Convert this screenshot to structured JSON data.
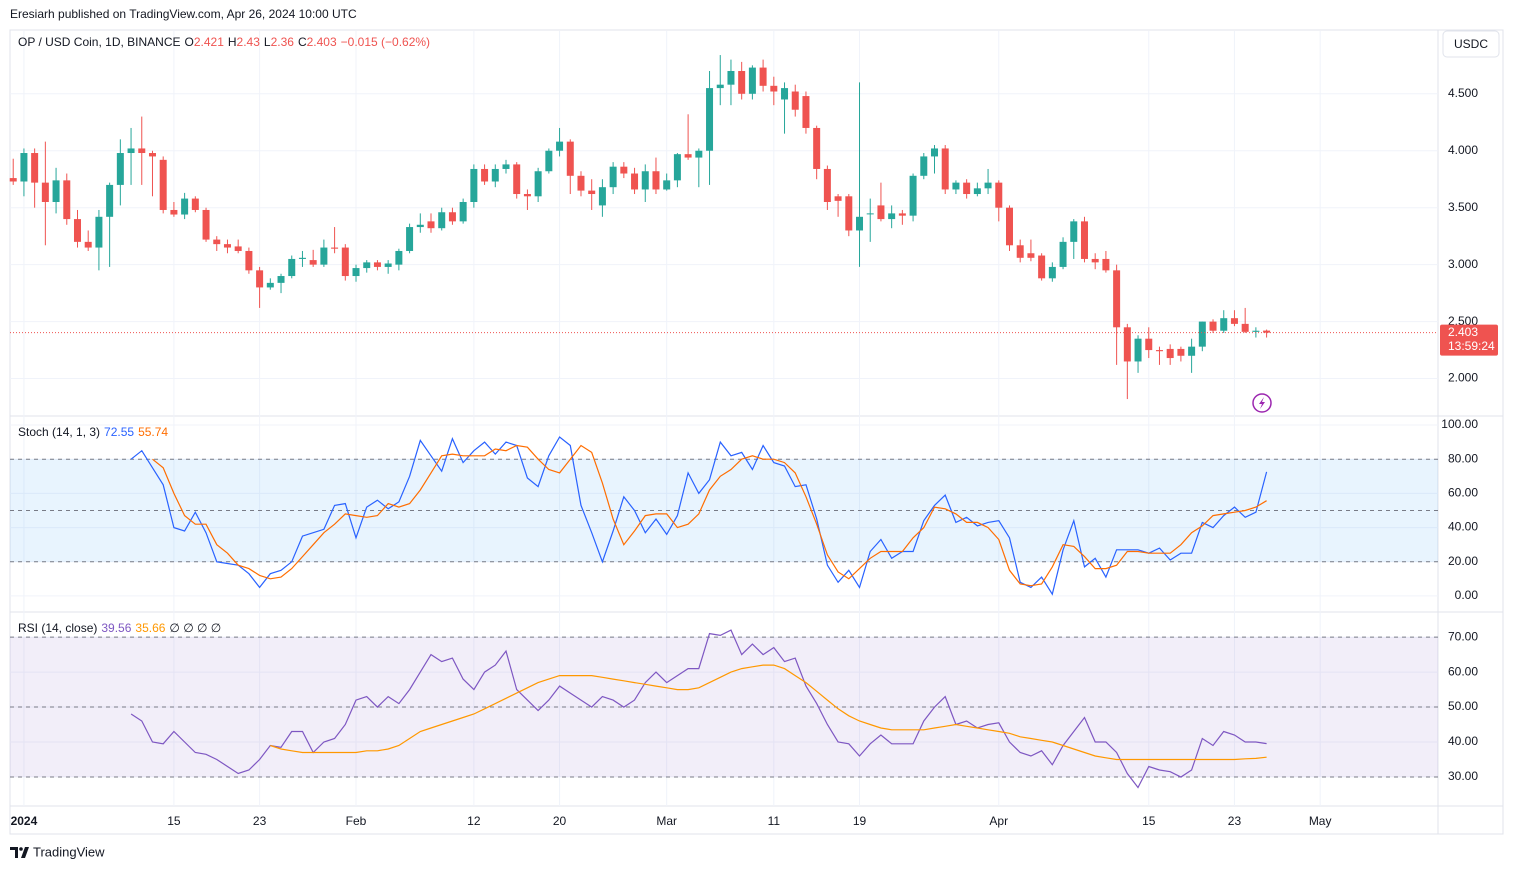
{
  "header": {
    "publisher": "Eresiarh published on TradingView.com, Apr 26, 2024 10:00 UTC",
    "symbol": "OP / USD Coin, 1D, BINANCE",
    "o_label": "O",
    "h_label": "H",
    "l_label": "L",
    "c_label": "C",
    "change": "−0.015 (−0.62%)",
    "currency_button": "USDC",
    "countdown": "13:59:24",
    "brand": "TradingView"
  },
  "chart_data": [
    {
      "type": "candlestick",
      "up_color": "#26a69a",
      "down_color": "#ef5350",
      "grid": true,
      "xlim": [
        -0.3,
        133
      ],
      "xticks": [
        {
          "value": 1,
          "label": "2024"
        },
        {
          "value": 15,
          "label": "15"
        },
        {
          "value": 23,
          "label": "23"
        },
        {
          "value": 32,
          "label": "Feb"
        },
        {
          "value": 43,
          "label": "12"
        },
        {
          "value": 51,
          "label": "20"
        },
        {
          "value": 61,
          "label": "Mar"
        },
        {
          "value": 71,
          "label": "11"
        },
        {
          "value": 79,
          "label": "19"
        },
        {
          "value": 92,
          "label": "Apr"
        },
        {
          "value": 106,
          "label": "15"
        },
        {
          "value": 114,
          "label": "23"
        },
        {
          "value": 122,
          "label": "May"
        }
      ],
      "ylim": [
        1.68,
        5.06
      ],
      "yticks": [
        {
          "value": 2,
          "label": "2.000"
        },
        {
          "value": 2.5,
          "label": "2.500"
        },
        {
          "value": 3,
          "label": "3.000"
        },
        {
          "value": 3.5,
          "label": "3.500"
        },
        {
          "value": 4,
          "label": "4.000"
        },
        {
          "value": 4.5,
          "label": "4.500"
        }
      ],
      "open": [
        3.76,
        3.73,
        3.98,
        3.72,
        3.55,
        3.74,
        3.4,
        3.2,
        3.15,
        3.42,
        3.7,
        3.98,
        4.02,
        3.98,
        3.92,
        3.48,
        3.44,
        3.58,
        3.48,
        3.22,
        3.18,
        3.16,
        3.12,
        2.95,
        2.8,
        2.84,
        2.9,
        3.05,
        3.04,
        3.0,
        3.15,
        3.15,
        2.9,
        2.97,
        3.02,
        2.98,
        3.0,
        3.12,
        3.33,
        3.38,
        3.32,
        3.46,
        3.38,
        3.55,
        3.84,
        3.73,
        3.84,
        3.88,
        3.62,
        3.6,
        3.82,
        4.0,
        4.08,
        3.78,
        3.65,
        3.52,
        3.68,
        3.86,
        3.8,
        3.66,
        3.82,
        3.66,
        3.74,
        3.97,
        3.94,
        4.0,
        4.55,
        4.58,
        4.7,
        4.5,
        4.73,
        4.57,
        4.45,
        4.52,
        4.48,
        4.2,
        3.84,
        3.6,
        3.6,
        3.3,
        3.45,
        3.52,
        3.4,
        3.45,
        3.43,
        3.78,
        3.95,
        4.02,
        3.66,
        3.72,
        3.62,
        3.67,
        3.72,
        3.5,
        3.17,
        3.1,
        3.08,
        2.88,
        2.98,
        3.2,
        3.38,
        3.05,
        3.05,
        2.95,
        2.45,
        2.15,
        2.35,
        2.25,
        2.26,
        2.26,
        2.2,
        2.28,
        2.5,
        2.42,
        2.53,
        2.48,
        2.41,
        2.421
      ],
      "high": [
        3.93,
        4.02,
        4.02,
        4.08,
        3.85,
        3.8,
        3.48,
        3.3,
        3.48,
        3.72,
        4.1,
        4.2,
        4.3,
        4.0,
        3.95,
        3.55,
        3.63,
        3.6,
        3.5,
        3.25,
        3.22,
        3.22,
        3.15,
        2.98,
        2.88,
        2.92,
        3.08,
        3.12,
        3.13,
        3.22,
        3.33,
        3.18,
        3.0,
        3.04,
        3.04,
        3.04,
        3.14,
        3.36,
        3.45,
        3.45,
        3.5,
        3.5,
        3.58,
        3.88,
        3.88,
        3.88,
        3.92,
        3.9,
        3.66,
        3.85,
        4.02,
        4.2,
        4.1,
        3.82,
        3.75,
        3.75,
        3.9,
        3.9,
        3.85,
        3.88,
        3.94,
        3.8,
        3.98,
        4.32,
        4.02,
        4.7,
        4.84,
        4.8,
        4.78,
        4.75,
        4.8,
        4.65,
        4.6,
        4.58,
        4.52,
        4.22,
        3.87,
        3.62,
        3.62,
        4.6,
        3.58,
        3.72,
        3.52,
        3.48,
        3.8,
        3.98,
        4.05,
        4.05,
        3.74,
        3.75,
        3.72,
        3.84,
        3.74,
        3.52,
        3.22,
        3.22,
        3.1,
        3.02,
        3.24,
        3.4,
        3.42,
        3.1,
        3.12,
        3.0,
        2.48,
        2.38,
        2.45,
        2.28,
        2.3,
        2.28,
        2.35,
        2.5,
        2.52,
        2.6,
        2.6,
        2.62,
        2.45,
        2.43
      ],
      "low": [
        3.7,
        3.6,
        3.5,
        3.17,
        3.45,
        3.35,
        3.15,
        3.12,
        2.95,
        2.98,
        3.52,
        3.7,
        3.7,
        3.6,
        3.45,
        3.42,
        3.4,
        3.46,
        3.2,
        3.12,
        3.1,
        3.1,
        2.92,
        2.62,
        2.78,
        2.75,
        2.88,
        2.98,
        2.98,
        2.98,
        3.1,
        2.86,
        2.85,
        2.93,
        2.95,
        2.92,
        2.95,
        3.1,
        3.28,
        3.28,
        3.3,
        3.35,
        3.36,
        3.5,
        3.7,
        3.68,
        3.8,
        3.58,
        3.48,
        3.55,
        3.8,
        3.95,
        3.62,
        3.6,
        3.48,
        3.42,
        3.62,
        3.76,
        3.62,
        3.55,
        3.62,
        3.65,
        3.68,
        3.92,
        3.68,
        3.7,
        4.4,
        4.4,
        4.45,
        4.45,
        4.52,
        4.4,
        4.15,
        4.3,
        4.15,
        3.75,
        3.48,
        3.42,
        3.25,
        2.98,
        3.2,
        3.38,
        3.32,
        3.35,
        3.38,
        3.75,
        3.8,
        3.62,
        3.62,
        3.58,
        3.6,
        3.62,
        3.38,
        3.12,
        3.02,
        3.03,
        2.86,
        2.85,
        2.96,
        3.05,
        3.02,
        2.96,
        2.93,
        2.12,
        1.82,
        2.05,
        2.18,
        2.12,
        2.12,
        2.15,
        2.05,
        2.24,
        2.4,
        2.4,
        2.46,
        2.4,
        2.36,
        2.36
      ],
      "close": [
        3.73,
        3.98,
        3.72,
        3.55,
        3.74,
        3.4,
        3.2,
        3.15,
        3.42,
        3.7,
        3.98,
        4.02,
        3.98,
        3.95,
        3.48,
        3.44,
        3.58,
        3.48,
        3.22,
        3.18,
        3.15,
        3.12,
        2.95,
        2.8,
        2.84,
        2.9,
        3.05,
        3.06,
        3.0,
        3.15,
        3.14,
        2.9,
        2.97,
        3.02,
        2.98,
        3.01,
        3.12,
        3.33,
        3.35,
        3.32,
        3.46,
        3.38,
        3.55,
        3.84,
        3.73,
        3.84,
        3.88,
        3.62,
        3.6,
        3.82,
        4.0,
        4.08,
        3.78,
        3.65,
        3.62,
        3.68,
        3.86,
        3.8,
        3.66,
        3.82,
        3.66,
        3.74,
        3.97,
        3.94,
        4.0,
        4.55,
        4.58,
        4.7,
        4.5,
        4.73,
        4.57,
        4.52,
        4.55,
        4.36,
        4.2,
        3.84,
        3.55,
        3.56,
        3.3,
        3.42,
        3.45,
        3.4,
        3.45,
        3.43,
        3.78,
        3.95,
        4.02,
        3.66,
        3.72,
        3.62,
        3.67,
        3.72,
        3.5,
        3.17,
        3.06,
        3.06,
        2.88,
        2.98,
        3.2,
        3.38,
        3.05,
        3.02,
        2.95,
        2.45,
        2.15,
        2.35,
        2.25,
        2.24,
        2.18,
        2.2,
        2.28,
        2.5,
        2.42,
        2.53,
        2.48,
        2.41,
        2.42,
        2.403
      ]
    },
    {
      "type": "line",
      "title": "Stoch (14, 1, 3)",
      "xlim": [
        -0.3,
        133
      ],
      "ylim": [
        -9.4,
        104.7
      ],
      "grid": true,
      "yticks": [
        {
          "value": 0,
          "label": "0.00"
        },
        {
          "value": 20,
          "label": "20.00"
        },
        {
          "value": 40,
          "label": "40.00"
        },
        {
          "value": 60,
          "label": "60.00"
        },
        {
          "value": 80,
          "label": "80.00"
        },
        {
          "value": 100,
          "label": "100.00"
        }
      ],
      "bands": {
        "lower": 20,
        "middle": 50,
        "upper": 80
      },
      "band_color": "rgba(33,150,243,0.1)",
      "series": [
        {
          "color": "#2962ff",
          "values": [
            null,
            null,
            null,
            null,
            null,
            null,
            null,
            null,
            null,
            null,
            null,
            80,
            85,
            75,
            65,
            40,
            38,
            49,
            37,
            20,
            19,
            18,
            13,
            5,
            13,
            15,
            20,
            35,
            37,
            39,
            53,
            54,
            34,
            52,
            56,
            51,
            55,
            70,
            91,
            82,
            73,
            92,
            78,
            85,
            90,
            83,
            90,
            88,
            69,
            64,
            82,
            93,
            88,
            53,
            37,
            20,
            38,
            58,
            50,
            37,
            45,
            36,
            47,
            72,
            60,
            68,
            90,
            82,
            84,
            74,
            88,
            78,
            76,
            64,
            65,
            45,
            18,
            8,
            15,
            5,
            26,
            33,
            22,
            26,
            26,
            44,
            53,
            59,
            43,
            46,
            41,
            43,
            44,
            34,
            8,
            5,
            11,
            1,
            27,
            44,
            17,
            22,
            11,
            27,
            27,
            27,
            25,
            28,
            21,
            25,
            25,
            43,
            40,
            47,
            52,
            46,
            49,
            72.55
          ]
        },
        {
          "color": "#ff6d00",
          "values": [
            null,
            null,
            null,
            null,
            null,
            null,
            null,
            null,
            null,
            null,
            null,
            null,
            null,
            80,
            75,
            60,
            47,
            42,
            42,
            30,
            25,
            18,
            16,
            12,
            10,
            11,
            16,
            23,
            30,
            37,
            42,
            48,
            47,
            46,
            47,
            54,
            52,
            54,
            62,
            72,
            82,
            83,
            82,
            82,
            82,
            86,
            85,
            88,
            87,
            80,
            74,
            72,
            80,
            88,
            84,
            66,
            45,
            30,
            38,
            47,
            48,
            48,
            40,
            42,
            48,
            62,
            70,
            74,
            80,
            82,
            80,
            80,
            78,
            72,
            58,
            42,
            24,
            14,
            10,
            16,
            22,
            26,
            26,
            26,
            34,
            40,
            52,
            51,
            48,
            43,
            43,
            40,
            33,
            15,
            7,
            6,
            7,
            17,
            30,
            29,
            23,
            16,
            16,
            18,
            26,
            26,
            25,
            25,
            25,
            30,
            37,
            41,
            47,
            48,
            49,
            50,
            52,
            55.74
          ]
        }
      ]
    },
    {
      "type": "line",
      "title": "RSI (14, close)",
      "legend_extra": "∅ ∅ ∅ ∅",
      "xlim": [
        -0.3,
        133
      ],
      "ylim": [
        21.7,
        76.9
      ],
      "grid": true,
      "yticks": [
        {
          "value": 30,
          "label": "30.00"
        },
        {
          "value": 40,
          "label": "40.00"
        },
        {
          "value": 50,
          "label": "50.00"
        },
        {
          "value": 60,
          "label": "60.00"
        },
        {
          "value": 70,
          "label": "70.00"
        }
      ],
      "bands": {
        "lower": 30,
        "middle": 50,
        "upper": 70
      },
      "band_color": "rgba(126,87,194,0.1)",
      "series": [
        {
          "color": "#7e57c2",
          "values": [
            null,
            null,
            null,
            null,
            null,
            null,
            null,
            null,
            null,
            null,
            null,
            48,
            46,
            40,
            39.5,
            43,
            40,
            37,
            36.5,
            35,
            33,
            31,
            32,
            35,
            39,
            38.5,
            43,
            43,
            37,
            40,
            41,
            45,
            52,
            53,
            50,
            53,
            51,
            55,
            60,
            65,
            63,
            64,
            58,
            55,
            60,
            62,
            66,
            55,
            52,
            49,
            52,
            56,
            54,
            52,
            50,
            53,
            52,
            50,
            52,
            57,
            60,
            57,
            59,
            61,
            61,
            71,
            70.5,
            72,
            65,
            68,
            65,
            67,
            63,
            64,
            56,
            51,
            45,
            40,
            39.5,
            36,
            39.5,
            42,
            39.5,
            39.5,
            39.5,
            46,
            50,
            53,
            45,
            46,
            44,
            45,
            45.5,
            40,
            37,
            36,
            37.5,
            33.5,
            39,
            43,
            47,
            40,
            40,
            37,
            31,
            27,
            33,
            32,
            31.5,
            30,
            32,
            41,
            39,
            43,
            42,
            40,
            40,
            39.56
          ]
        },
        {
          "color": "#ff9800",
          "values": [
            null,
            null,
            null,
            null,
            null,
            null,
            null,
            null,
            null,
            null,
            null,
            null,
            null,
            null,
            null,
            null,
            null,
            null,
            null,
            null,
            null,
            null,
            null,
            null,
            39,
            38,
            37.5,
            37,
            37,
            37,
            37,
            37,
            37,
            37.5,
            37.5,
            38,
            39,
            41,
            43,
            44,
            45,
            46,
            47,
            48,
            49.5,
            51,
            52.5,
            54,
            55.5,
            57,
            58,
            59,
            59,
            59,
            59,
            58.5,
            58,
            57.5,
            57,
            56.5,
            56,
            55.5,
            55,
            55,
            55.5,
            57,
            58.5,
            60,
            61,
            61.5,
            62,
            62,
            61,
            59,
            57,
            54.5,
            52,
            49.5,
            47.5,
            46,
            45,
            44,
            43.5,
            43.5,
            43.5,
            43.5,
            44,
            44.5,
            45,
            44.5,
            44,
            43.5,
            43,
            42.5,
            41.5,
            41,
            40.5,
            40,
            39,
            38,
            37,
            36,
            35.5,
            35,
            35,
            35,
            35,
            35,
            35,
            35,
            35,
            35,
            35,
            35,
            35,
            35.2,
            35.3,
            35.66
          ]
        }
      ]
    }
  ]
}
